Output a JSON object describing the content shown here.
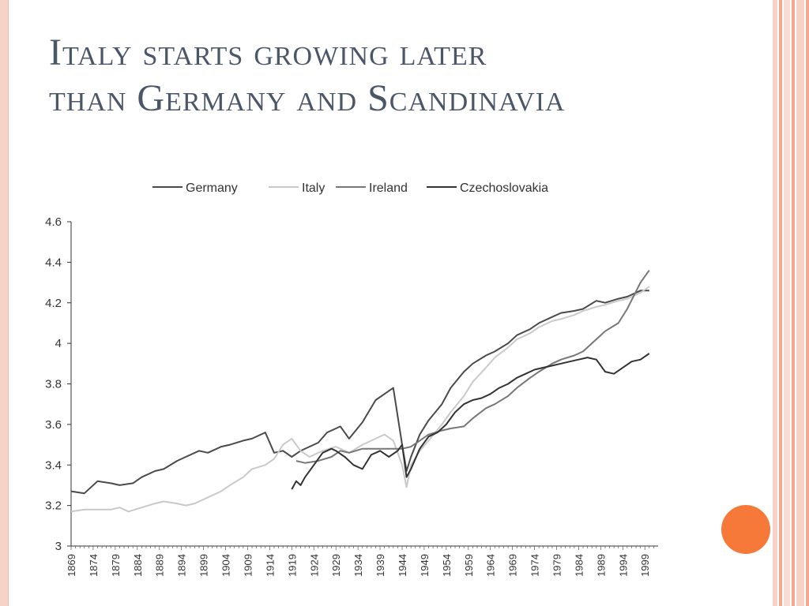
{
  "slide": {
    "title_lines": [
      "Italy starts growing later",
      "than Germany and Scandinavia"
    ],
    "colors": {
      "title": "#4b5668",
      "accent_dot": "#f7793a",
      "border_pink": "#f6d3c6",
      "stripe_salmon": "#f2a990"
    }
  },
  "chart_data": {
    "type": "line",
    "title": "",
    "xlabel": "",
    "ylabel": "",
    "ylim": [
      3,
      4.6
    ],
    "yticks": [
      "4.6",
      "4.4",
      "4.2",
      "4",
      "3.8",
      "3.6",
      "3.4",
      "3.2",
      "3"
    ],
    "xticks": [
      "1869",
      "1874",
      "1879",
      "1884",
      "1889",
      "1894",
      "1899",
      "1904",
      "1909",
      "1914",
      "1919",
      "1924",
      "1929",
      "1934",
      "1939",
      "1944",
      "1949",
      "1954",
      "1959",
      "1964",
      "1969",
      "1974",
      "1979",
      "1984",
      "1989",
      "1994",
      "1999"
    ],
    "xlim": [
      1869,
      2002
    ],
    "legend_position": "top",
    "series": [
      {
        "name": "Germany",
        "color": "#4a4a4a",
        "x": [
          1869,
          1872,
          1875,
          1878,
          1880,
          1883,
          1885,
          1888,
          1890,
          1893,
          1895,
          1898,
          1900,
          1903,
          1905,
          1908,
          1910,
          1913,
          1915,
          1917,
          1919,
          1921,
          1923,
          1925,
          1927,
          1930,
          1932,
          1935,
          1938,
          1940,
          1942,
          1944,
          1945,
          1946,
          1948,
          1950,
          1953,
          1955,
          1958,
          1960,
          1963,
          1965,
          1968,
          1970,
          1973,
          1975,
          1978,
          1980,
          1983,
          1985,
          1988,
          1990,
          1993,
          1995,
          1998,
          2000
        ],
        "y": [
          3.27,
          3.26,
          3.32,
          3.31,
          3.3,
          3.31,
          3.34,
          3.37,
          3.38,
          3.42,
          3.44,
          3.47,
          3.46,
          3.49,
          3.5,
          3.52,
          3.53,
          3.56,
          3.46,
          3.47,
          3.44,
          3.47,
          3.49,
          3.51,
          3.56,
          3.59,
          3.53,
          3.61,
          3.72,
          3.75,
          3.78,
          3.5,
          3.37,
          3.44,
          3.55,
          3.62,
          3.7,
          3.78,
          3.86,
          3.9,
          3.94,
          3.96,
          4.0,
          4.04,
          4.07,
          4.1,
          4.13,
          4.15,
          4.16,
          4.17,
          4.21,
          4.2,
          4.22,
          4.23,
          4.26,
          4.26
        ]
      },
      {
        "name": "Italy",
        "color": "#c9c9c9",
        "x": [
          1869,
          1872,
          1875,
          1878,
          1880,
          1882,
          1885,
          1888,
          1890,
          1893,
          1895,
          1897,
          1900,
          1903,
          1905,
          1908,
          1910,
          1913,
          1915,
          1917,
          1919,
          1921,
          1923,
          1926,
          1929,
          1932,
          1935,
          1938,
          1940,
          1942,
          1944,
          1945,
          1946,
          1948,
          1950,
          1953,
          1955,
          1958,
          1960,
          1963,
          1965,
          1968,
          1970,
          1973,
          1975,
          1978,
          1980,
          1983,
          1985,
          1988,
          1990,
          1993,
          1995,
          1998,
          2000
        ],
        "y": [
          3.17,
          3.18,
          3.18,
          3.18,
          3.19,
          3.17,
          3.19,
          3.21,
          3.22,
          3.21,
          3.2,
          3.21,
          3.24,
          3.27,
          3.3,
          3.34,
          3.38,
          3.4,
          3.43,
          3.5,
          3.53,
          3.47,
          3.44,
          3.47,
          3.49,
          3.46,
          3.5,
          3.53,
          3.55,
          3.52,
          3.4,
          3.29,
          3.4,
          3.47,
          3.52,
          3.6,
          3.66,
          3.74,
          3.81,
          3.88,
          3.93,
          3.98,
          4.02,
          4.05,
          4.08,
          4.11,
          4.12,
          4.14,
          4.16,
          4.18,
          4.19,
          4.21,
          4.22,
          4.25,
          4.28
        ]
      },
      {
        "name": "Ireland",
        "color": "#777777",
        "x": [
          1920,
          1922,
          1925,
          1928,
          1930,
          1932,
          1935,
          1938,
          1940,
          1942,
          1944,
          1946,
          1948,
          1950,
          1953,
          1955,
          1958,
          1960,
          1963,
          1965,
          1968,
          1970,
          1973,
          1975,
          1978,
          1980,
          1983,
          1985,
          1988,
          1990,
          1993,
          1995,
          1998,
          2000
        ],
        "y": [
          3.42,
          3.41,
          3.42,
          3.44,
          3.47,
          3.46,
          3.48,
          3.48,
          3.48,
          3.48,
          3.48,
          3.49,
          3.52,
          3.55,
          3.57,
          3.58,
          3.59,
          3.63,
          3.68,
          3.7,
          3.74,
          3.78,
          3.83,
          3.86,
          3.9,
          3.92,
          3.94,
          3.96,
          4.02,
          4.06,
          4.1,
          4.17,
          4.3,
          4.36
        ]
      },
      {
        "name": "Czechoslovakia",
        "color": "#333333",
        "x": [
          1919,
          1920,
          1921,
          1922,
          1924,
          1926,
          1928,
          1929,
          1931,
          1933,
          1935,
          1937,
          1939,
          1941,
          1943,
          1944,
          1945,
          1946,
          1948,
          1950,
          1952,
          1954,
          1956,
          1958,
          1960,
          1962,
          1964,
          1966,
          1968,
          1970,
          1972,
          1974,
          1976,
          1978,
          1980,
          1982,
          1984,
          1986,
          1988,
          1990,
          1992,
          1994,
          1996,
          1998,
          2000
        ],
        "y": [
          3.28,
          3.32,
          3.3,
          3.34,
          3.4,
          3.46,
          3.48,
          3.47,
          3.44,
          3.4,
          3.38,
          3.45,
          3.47,
          3.44,
          3.47,
          3.5,
          3.34,
          3.38,
          3.48,
          3.54,
          3.56,
          3.6,
          3.66,
          3.7,
          3.72,
          3.73,
          3.75,
          3.78,
          3.8,
          3.83,
          3.85,
          3.87,
          3.88,
          3.89,
          3.9,
          3.91,
          3.92,
          3.93,
          3.92,
          3.86,
          3.85,
          3.88,
          3.91,
          3.92,
          3.95
        ]
      }
    ]
  }
}
